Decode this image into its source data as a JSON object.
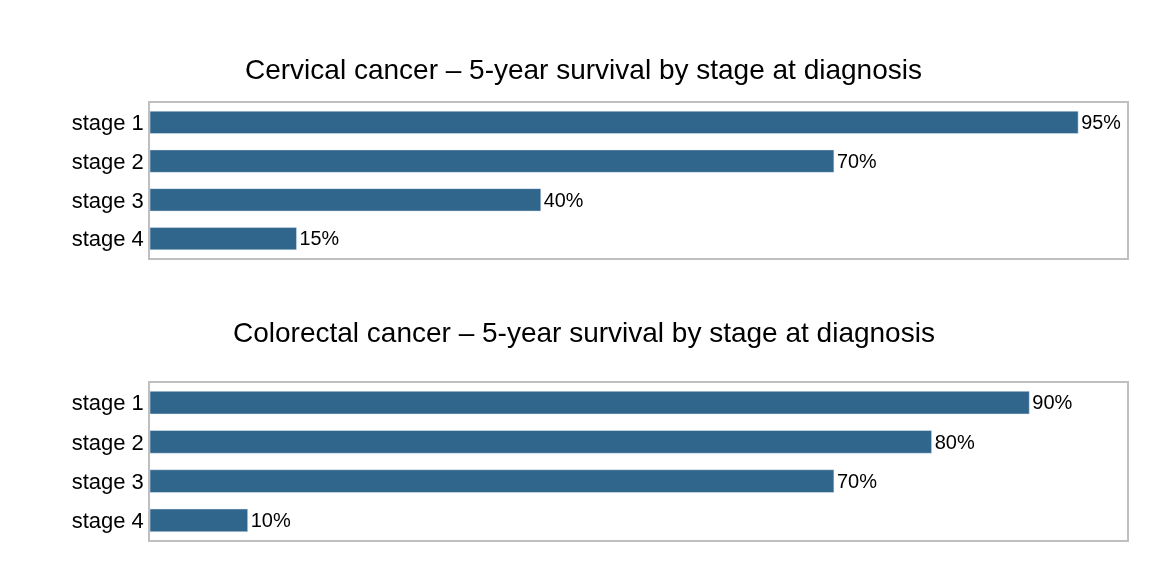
{
  "chart_data": [
    {
      "type": "bar",
      "orientation": "horizontal",
      "title": "Cervical cancer – 5-year survival by stage at diagnosis",
      "categories": [
        "stage 1",
        "stage 2",
        "stage 3",
        "stage 4"
      ],
      "values": [
        95,
        70,
        40,
        15
      ],
      "value_labels": [
        "95%",
        "70%",
        "40%",
        "15%"
      ],
      "color": "#31668c",
      "xlim": [
        0,
        100
      ],
      "tick_labels": "y"
    },
    {
      "type": "bar",
      "orientation": "horizontal",
      "title": "Colorectal cancer – 5-year survival by stage at diagnosis",
      "categories": [
        "stage 1",
        "stage 2",
        "stage 3",
        "stage 4"
      ],
      "values": [
        90,
        80,
        70,
        10
      ],
      "value_labels": [
        "90%",
        "80%",
        "70%",
        "10%"
      ],
      "color": "#31668c",
      "xlim": [
        0,
        100
      ],
      "tick_labels": "y"
    }
  ]
}
